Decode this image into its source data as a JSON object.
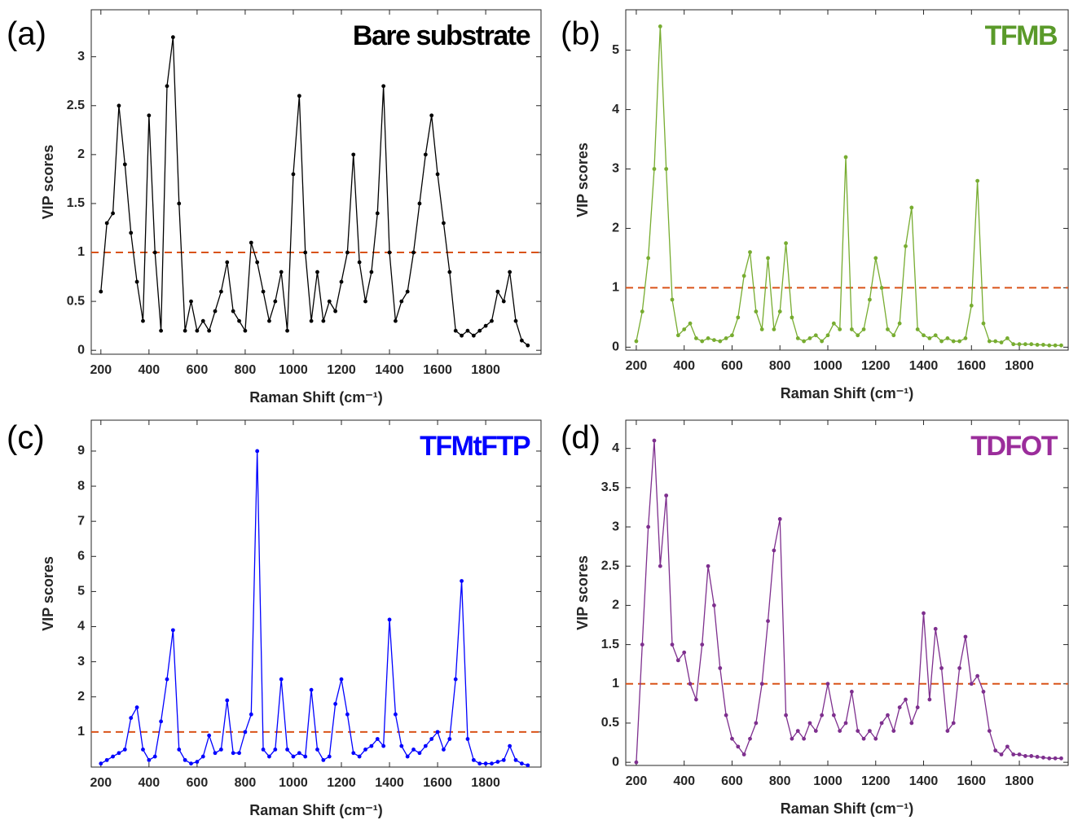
{
  "chart_data": [
    {
      "type": "line",
      "label": "(a)",
      "title": "Bare substrate",
      "title_color": "#000000",
      "color": "#000000",
      "marker": true,
      "xlabel": "Raman Shift (cm⁻¹)",
      "ylabel": "VIP scores",
      "threshold": {
        "value": 1,
        "color": "#d95319"
      },
      "xlim": [
        160,
        2030
      ],
      "ylim": [
        -0.04,
        3.48
      ],
      "xticks": [
        200,
        400,
        600,
        800,
        1000,
        1200,
        1400,
        1600,
        1800
      ],
      "yticks": [
        0,
        0.5,
        1,
        1.5,
        2,
        2.5,
        3
      ],
      "x": [
        200,
        225,
        250,
        275,
        300,
        325,
        350,
        375,
        400,
        425,
        450,
        475,
        500,
        525,
        550,
        575,
        600,
        625,
        650,
        675,
        700,
        725,
        750,
        775,
        800,
        825,
        850,
        875,
        900,
        925,
        950,
        975,
        1000,
        1025,
        1050,
        1075,
        1100,
        1125,
        1150,
        1175,
        1200,
        1225,
        1250,
        1275,
        1300,
        1325,
        1350,
        1375,
        1400,
        1425,
        1450,
        1475,
        1500,
        1525,
        1550,
        1575,
        1600,
        1625,
        1650,
        1675,
        1700,
        1725,
        1750,
        1775,
        1800,
        1825,
        1850,
        1875,
        1900,
        1925,
        1950,
        1975
      ],
      "values": [
        0.6,
        1.3,
        1.4,
        2.5,
        1.9,
        1.2,
        0.7,
        0.3,
        2.4,
        1.0,
        0.2,
        2.7,
        3.2,
        1.5,
        0.2,
        0.5,
        0.2,
        0.3,
        0.2,
        0.4,
        0.6,
        0.9,
        0.4,
        0.3,
        0.2,
        1.1,
        0.9,
        0.6,
        0.3,
        0.5,
        0.8,
        0.2,
        1.8,
        2.6,
        1.0,
        0.3,
        0.8,
        0.3,
        0.5,
        0.4,
        0.7,
        1.0,
        2.0,
        0.9,
        0.5,
        0.8,
        1.4,
        2.7,
        1.0,
        0.3,
        0.5,
        0.6,
        1.0,
        1.5,
        2.0,
        2.4,
        1.8,
        1.3,
        0.8,
        0.2,
        0.15,
        0.2,
        0.15,
        0.2,
        0.25,
        0.3,
        0.6,
        0.5,
        0.8,
        0.3,
        0.1,
        0.05
      ]
    },
    {
      "type": "line",
      "label": "(b)",
      "title": "TFMB",
      "title_color": "#5a9a2a",
      "color": "#77ac30",
      "marker": true,
      "xlabel": "Raman Shift (cm⁻¹)",
      "ylabel": "VIP scores",
      "threshold": {
        "value": 1,
        "color": "#d95319"
      },
      "xlim": [
        156,
        2004
      ],
      "ylim": [
        -0.05,
        5.68
      ],
      "xticks": [
        200,
        400,
        600,
        800,
        1000,
        1200,
        1400,
        1600,
        1800
      ],
      "yticks": [
        0,
        1,
        2,
        3,
        4,
        5
      ],
      "x": [
        200,
        225,
        250,
        275,
        300,
        325,
        350,
        375,
        400,
        425,
        450,
        475,
        500,
        525,
        550,
        575,
        600,
        625,
        650,
        675,
        700,
        725,
        750,
        775,
        800,
        825,
        850,
        875,
        900,
        925,
        950,
        975,
        1000,
        1025,
        1050,
        1075,
        1100,
        1125,
        1150,
        1175,
        1200,
        1225,
        1250,
        1275,
        1300,
        1325,
        1350,
        1375,
        1400,
        1425,
        1450,
        1475,
        1500,
        1525,
        1550,
        1575,
        1600,
        1625,
        1650,
        1675,
        1700,
        1725,
        1750,
        1775,
        1800,
        1825,
        1850,
        1875,
        1900,
        1925,
        1950,
        1975
      ],
      "values": [
        0.1,
        0.6,
        1.5,
        3.0,
        5.4,
        3.0,
        0.8,
        0.2,
        0.3,
        0.4,
        0.15,
        0.1,
        0.15,
        0.12,
        0.1,
        0.15,
        0.2,
        0.5,
        1.2,
        1.6,
        0.6,
        0.3,
        1.5,
        0.3,
        0.6,
        1.75,
        0.5,
        0.15,
        0.1,
        0.15,
        0.2,
        0.1,
        0.2,
        0.4,
        0.3,
        3.2,
        0.3,
        0.2,
        0.3,
        0.8,
        1.5,
        1.0,
        0.3,
        0.2,
        0.4,
        1.7,
        2.35,
        0.3,
        0.2,
        0.15,
        0.2,
        0.1,
        0.15,
        0.1,
        0.1,
        0.15,
        0.7,
        2.8,
        0.4,
        0.1,
        0.1,
        0.08,
        0.15,
        0.05,
        0.05,
        0.05,
        0.05,
        0.04,
        0.04,
        0.03,
        0.03,
        0.03
      ]
    },
    {
      "type": "line",
      "label": "(c)",
      "title": "TFMtFTP",
      "title_color": "#0000ff",
      "color": "#0000ff",
      "marker": true,
      "xlabel": "Raman Shift (cm⁻¹)",
      "ylabel": "VIP scores",
      "threshold": {
        "value": 1,
        "color": "#d95319"
      },
      "xlim": [
        160,
        2030
      ],
      "ylim": [
        0,
        9.88
      ],
      "xticks": [
        200,
        400,
        600,
        800,
        1000,
        1200,
        1400,
        1600,
        1800
      ],
      "yticks": [
        1,
        2,
        3,
        4,
        5,
        6,
        7,
        8,
        9
      ],
      "x": [
        200,
        225,
        250,
        275,
        300,
        325,
        350,
        375,
        400,
        425,
        450,
        475,
        500,
        525,
        550,
        575,
        600,
        625,
        650,
        675,
        700,
        725,
        750,
        775,
        800,
        825,
        850,
        875,
        900,
        925,
        950,
        975,
        1000,
        1025,
        1050,
        1075,
        1100,
        1125,
        1150,
        1175,
        1200,
        1225,
        1250,
        1275,
        1300,
        1325,
        1350,
        1375,
        1400,
        1425,
        1450,
        1475,
        1500,
        1525,
        1550,
        1575,
        1600,
        1625,
        1650,
        1675,
        1700,
        1725,
        1750,
        1775,
        1800,
        1825,
        1850,
        1875,
        1900,
        1925,
        1950,
        1975
      ],
      "values": [
        0.1,
        0.2,
        0.3,
        0.4,
        0.5,
        1.4,
        1.7,
        0.5,
        0.2,
        0.3,
        1.3,
        2.5,
        3.9,
        0.5,
        0.2,
        0.1,
        0.15,
        0.3,
        0.9,
        0.4,
        0.5,
        1.9,
        0.4,
        0.4,
        1.0,
        1.5,
        9.0,
        0.5,
        0.3,
        0.5,
        2.5,
        0.5,
        0.3,
        0.4,
        0.3,
        2.2,
        0.5,
        0.2,
        0.3,
        1.8,
        2.5,
        1.5,
        0.4,
        0.3,
        0.5,
        0.6,
        0.8,
        0.6,
        4.2,
        1.5,
        0.6,
        0.3,
        0.5,
        0.4,
        0.6,
        0.8,
        1.0,
        0.5,
        0.8,
        2.5,
        5.3,
        0.8,
        0.2,
        0.1,
        0.1,
        0.1,
        0.15,
        0.2,
        0.6,
        0.2,
        0.1,
        0.05
      ]
    },
    {
      "type": "line",
      "label": "(d)",
      "title": "TDFOT",
      "title_color": "#9b2d9b",
      "color": "#7e2f8e",
      "marker": true,
      "xlabel": "Raman Shift (cm⁻¹)",
      "ylabel": "VIP scores",
      "threshold": {
        "value": 1,
        "color": "#d95319"
      },
      "xlim": [
        156,
        2004
      ],
      "ylim": [
        -0.04,
        4.36
      ],
      "xticks": [
        200,
        400,
        600,
        800,
        1000,
        1200,
        1400,
        1600,
        1800
      ],
      "yticks": [
        0,
        0.5,
        1,
        1.5,
        2,
        2.5,
        3,
        3.5,
        4
      ],
      "x": [
        200,
        225,
        250,
        275,
        300,
        325,
        350,
        375,
        400,
        425,
        450,
        475,
        500,
        525,
        550,
        575,
        600,
        625,
        650,
        675,
        700,
        725,
        750,
        775,
        800,
        825,
        850,
        875,
        900,
        925,
        950,
        975,
        1000,
        1025,
        1050,
        1075,
        1100,
        1125,
        1150,
        1175,
        1200,
        1225,
        1250,
        1275,
        1300,
        1325,
        1350,
        1375,
        1400,
        1425,
        1450,
        1475,
        1500,
        1525,
        1550,
        1575,
        1600,
        1625,
        1650,
        1675,
        1700,
        1725,
        1750,
        1775,
        1800,
        1825,
        1850,
        1875,
        1900,
        1925,
        1950,
        1975
      ],
      "values": [
        0.0,
        1.5,
        3.0,
        4.1,
        2.5,
        3.4,
        1.5,
        1.3,
        1.4,
        1.0,
        0.8,
        1.5,
        2.5,
        2.0,
        1.2,
        0.6,
        0.3,
        0.2,
        0.1,
        0.3,
        0.5,
        1.0,
        1.8,
        2.7,
        3.1,
        0.6,
        0.3,
        0.4,
        0.3,
        0.5,
        0.4,
        0.6,
        1.0,
        0.6,
        0.4,
        0.5,
        0.9,
        0.4,
        0.3,
        0.4,
        0.3,
        0.5,
        0.6,
        0.4,
        0.7,
        0.8,
        0.5,
        0.7,
        1.9,
        0.8,
        1.7,
        1.2,
        0.4,
        0.5,
        1.2,
        1.6,
        1.0,
        1.1,
        0.9,
        0.4,
        0.15,
        0.1,
        0.2,
        0.1,
        0.1,
        0.08,
        0.08,
        0.07,
        0.06,
        0.05,
        0.05,
        0.05
      ]
    }
  ]
}
